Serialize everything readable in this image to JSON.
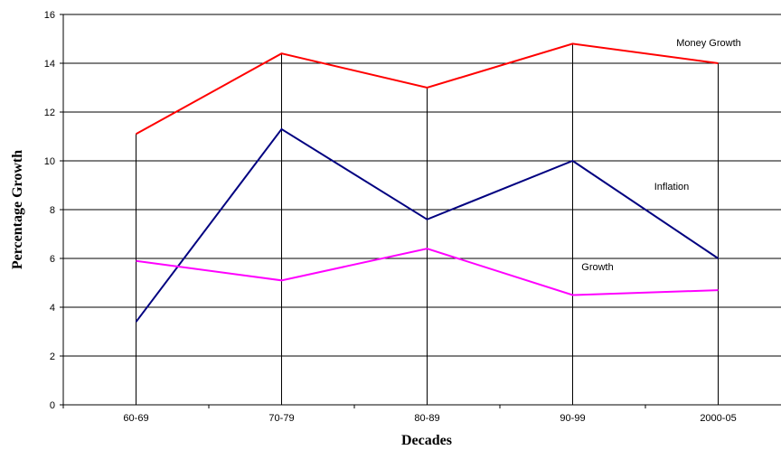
{
  "chart_data": {
    "type": "line",
    "title": "",
    "xlabel": "Decades",
    "ylabel": "Percentage Growth",
    "categories": [
      "60-69",
      "70-79",
      "80-89",
      "90-99",
      "2000-05"
    ],
    "ylim": [
      0,
      16
    ],
    "yticks": [
      0,
      2,
      4,
      6,
      8,
      10,
      12,
      14,
      16
    ],
    "grid": "horizontal major gridlines and drop lines at each category",
    "legend": "none; series labelled directly on the plot",
    "series": [
      {
        "name": "Money Growth",
        "values": [
          11.1,
          14.4,
          13.0,
          14.8,
          14.0
        ],
        "color": "#ff0000"
      },
      {
        "name": "Inflation",
        "values": [
          3.4,
          11.3,
          7.6,
          10.0,
          6.0
        ],
        "color": "#000080"
      },
      {
        "name": "Growth",
        "values": [
          5.9,
          5.1,
          6.4,
          4.5,
          4.7
        ],
        "color": "#ff00ff"
      }
    ]
  }
}
